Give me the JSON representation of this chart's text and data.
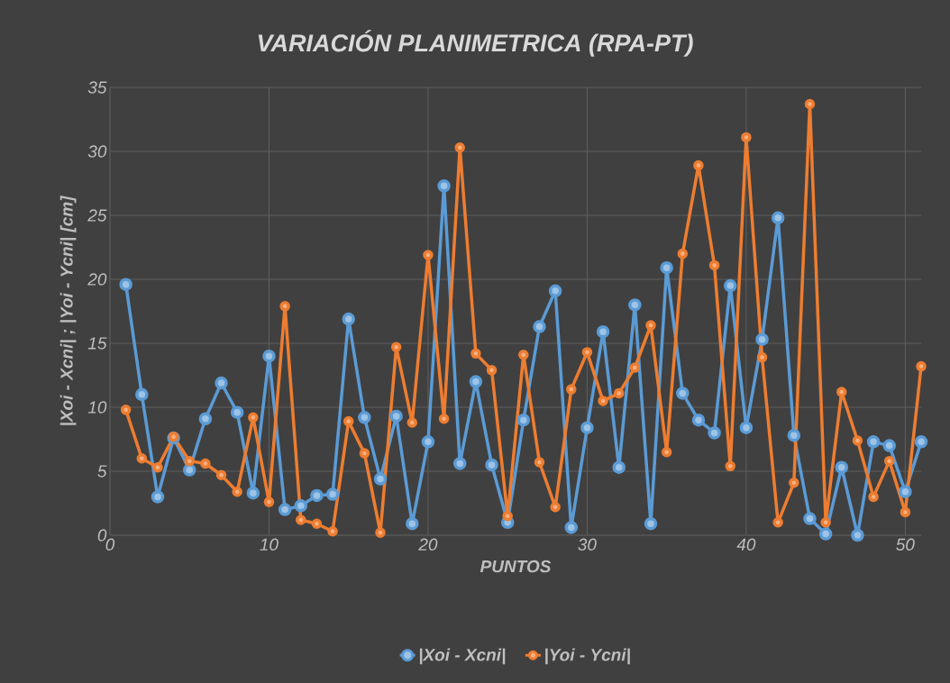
{
  "chart_data": {
    "type": "line",
    "title": "VARIACIÓN PLANIMETRICA (RPA-PT)",
    "xlabel": "PUNTOS",
    "ylabel": "|Xoi - Xcni| ; |Yoi - Ycni| [cm]",
    "x": [
      1,
      2,
      3,
      4,
      5,
      6,
      7,
      8,
      9,
      10,
      11,
      12,
      13,
      14,
      15,
      16,
      17,
      18,
      19,
      20,
      21,
      22,
      23,
      24,
      25,
      26,
      27,
      28,
      29,
      30,
      31,
      32,
      33,
      34,
      35,
      36,
      37,
      38,
      39,
      40,
      41,
      42,
      43,
      44,
      45,
      46,
      47,
      48,
      49,
      50,
      51
    ],
    "series": [
      {
        "name": "|Xoi - Xcni|",
        "color": "#5b9bd5",
        "values": [
          19.6,
          11,
          3.0,
          7.6,
          5.1,
          9.1,
          11.9,
          9.6,
          3.3,
          14.0,
          2.0,
          2.3,
          3.1,
          3.2,
          16.9,
          9.2,
          4.4,
          9.3,
          0.9,
          7.3,
          27.3,
          5.6,
          12.0,
          5.5,
          1.0,
          9.0,
          16.3,
          19.1,
          0.6,
          8.4,
          15.9,
          5.3,
          18.0,
          0.9,
          20.9,
          11.1,
          9.0,
          8.0,
          19.5,
          8.4,
          15.3,
          24.8,
          7.8,
          1.3,
          0.1,
          5.3,
          0.0,
          7.3,
          7.0,
          3.4,
          7.3
        ]
      },
      {
        "name": "|Yoi - Ycni|",
        "color": "#ed7d31",
        "values": [
          9.8,
          6.0,
          5.3,
          7.7,
          5.8,
          5.6,
          4.7,
          3.4,
          9.2,
          2.6,
          17.9,
          1.2,
          0.9,
          0.3,
          8.9,
          6.4,
          0.2,
          14.7,
          8.8,
          21.9,
          9.1,
          30.3,
          14.2,
          12.9,
          1.5,
          14.1,
          5.7,
          2.2,
          11.4,
          14.3,
          10.5,
          11.1,
          13.1,
          16.4,
          6.5,
          22.0,
          28.9,
          21.1,
          5.4,
          31.1,
          13.9,
          1.0,
          4.1,
          33.7,
          1.0,
          11.2,
          7.4,
          3.0,
          5.8,
          1.8,
          13.2
        ]
      }
    ],
    "xlim": [
      0,
      51
    ],
    "ylim": [
      0,
      35
    ],
    "xticks": [
      0,
      10,
      20,
      30,
      40,
      50
    ],
    "yticks": [
      0,
      5,
      10,
      15,
      20,
      25,
      30,
      35
    ],
    "grid": true,
    "legend": "bottom",
    "marker": "circle",
    "line_style": "solid"
  }
}
